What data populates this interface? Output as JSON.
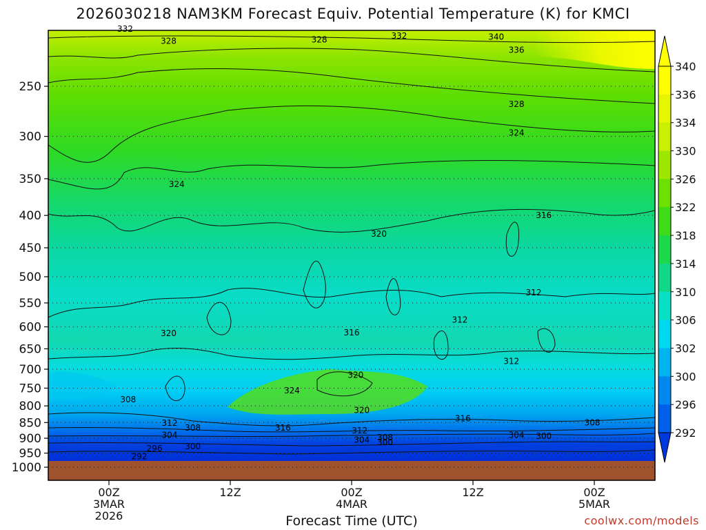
{
  "chart_data": {
    "type": "heatmap",
    "title": "2026030218 NAM3KM Forecast Equiv. Potential Temperature (K) for KMCI",
    "xlabel": "Forecast Time (UTC)",
    "ylabel": "",
    "y_scale": "log-pressure",
    "y_ticks": [
      "250",
      "300",
      "350",
      "400",
      "450",
      "500",
      "550",
      "600",
      "650",
      "700",
      "750",
      "800",
      "850",
      "900",
      "950",
      "1000"
    ],
    "x_ticks": [
      {
        "hour": 0,
        "lines": [
          "00Z",
          "3MAR",
          "2026"
        ]
      },
      {
        "hour": 12,
        "lines": [
          "12Z"
        ]
      },
      {
        "hour": 24,
        "lines": [
          "00Z",
          "4MAR"
        ]
      },
      {
        "hour": 36,
        "lines": [
          "12Z"
        ]
      },
      {
        "hour": 48,
        "lines": [
          "00Z",
          "5MAR"
        ]
      }
    ],
    "colorbar_levels": [
      "340",
      "336",
      "334",
      "330",
      "326",
      "322",
      "318",
      "314",
      "310",
      "306",
      "302",
      "300",
      "296",
      "292"
    ],
    "colorbar_colors": [
      "#ffff00",
      "#e6f500",
      "#c8f000",
      "#9ee800",
      "#6ee000",
      "#3edc18",
      "#1ed84c",
      "#10d888",
      "#08e0c4",
      "#00d8f0",
      "#00b4f0",
      "#0088f0",
      "#0060ec",
      "#0038e0"
    ],
    "contour_labels": [
      {
        "text": "332",
        "hour": 1.6,
        "p": 203
      },
      {
        "text": "328",
        "hour": 5.9,
        "p": 212
      },
      {
        "text": "328",
        "hour": 20.8,
        "p": 211
      },
      {
        "text": "332",
        "hour": 28.7,
        "p": 208
      },
      {
        "text": "340",
        "hour": 38.3,
        "p": 209
      },
      {
        "text": "336",
        "hour": 40.3,
        "p": 219
      },
      {
        "text": "328",
        "hour": 40.3,
        "p": 267
      },
      {
        "text": "324",
        "hour": 40.3,
        "p": 296
      },
      {
        "text": "324",
        "hour": 6.7,
        "p": 357
      },
      {
        "text": "316",
        "hour": 43.0,
        "p": 400
      },
      {
        "text": "320",
        "hour": 26.7,
        "p": 428
      },
      {
        "text": "312",
        "hour": 42.0,
        "p": 530
      },
      {
        "text": "312",
        "hour": 34.7,
        "p": 585
      },
      {
        "text": "316",
        "hour": 24.0,
        "p": 613
      },
      {
        "text": "320",
        "hour": 5.9,
        "p": 614
      },
      {
        "text": "312",
        "hour": 39.8,
        "p": 680
      },
      {
        "text": "320",
        "hour": 24.4,
        "p": 715
      },
      {
        "text": "324",
        "hour": 18.1,
        "p": 757
      },
      {
        "text": "308",
        "hour": 1.9,
        "p": 782
      },
      {
        "text": "320",
        "hour": 25.0,
        "p": 813
      },
      {
        "text": "316",
        "hour": 35.0,
        "p": 838
      },
      {
        "text": "308",
        "hour": 47.8,
        "p": 850
      },
      {
        "text": "312",
        "hour": 6.0,
        "p": 852
      },
      {
        "text": "308",
        "hour": 8.3,
        "p": 867
      },
      {
        "text": "316",
        "hour": 17.2,
        "p": 867
      },
      {
        "text": "312",
        "hour": 24.8,
        "p": 875
      },
      {
        "text": "304",
        "hour": 6.0,
        "p": 890
      },
      {
        "text": "304",
        "hour": 40.3,
        "p": 890
      },
      {
        "text": "300",
        "hour": 43.0,
        "p": 893
      },
      {
        "text": "308",
        "hour": 27.3,
        "p": 898
      },
      {
        "text": "304",
        "hour": 25.0,
        "p": 905
      },
      {
        "text": "300",
        "hour": 27.3,
        "p": 914
      },
      {
        "text": "300",
        "hour": 8.3,
        "p": 928
      },
      {
        "text": "296",
        "hour": 4.5,
        "p": 934
      },
      {
        "text": "292",
        "hour": 3.0,
        "p": 962
      }
    ],
    "legend": "right colorbar",
    "grid": "dotted horizontal lines at each pressure tick"
  },
  "credit": "coolwx.com/models"
}
